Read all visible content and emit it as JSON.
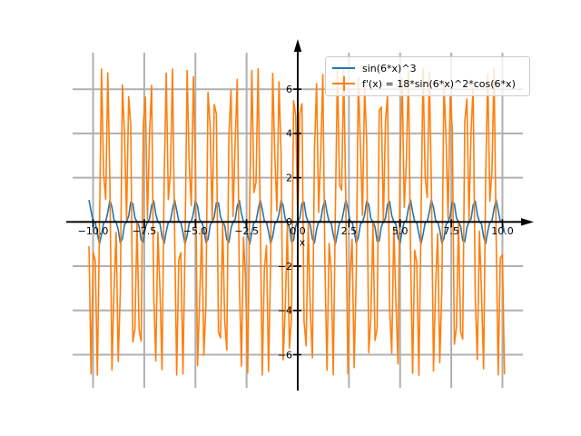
{
  "figure": {
    "background": "#ffffff",
    "xlabel": "x"
  },
  "legend": {
    "items": [
      {
        "label": "sin(6*x)^3",
        "handle": "line",
        "color": "#1f77b4"
      },
      {
        "label": "f'(x) = 18*sin(6*x)^2*cos(6*x)",
        "handle": "errorbar",
        "color": "#ff7f0e"
      }
    ]
  },
  "chart_data": {
    "type": "line",
    "title": "",
    "xlabel": "x",
    "ylabel": "",
    "grid": true,
    "grid_color": "#b0b0b0",
    "axis_color": "#000000",
    "legend_position": "upper center-right",
    "xlim": [
      -11,
      11
    ],
    "ylim": [
      -7.5,
      7.65
    ],
    "xticks": {
      "values": [
        -10,
        -7.5,
        -5,
        -2.5,
        0,
        2.5,
        5,
        7.5,
        10
      ],
      "labels": [
        "−10.0",
        "−7.5",
        "−5.0",
        "−2.5",
        "0.0",
        "2.5",
        "5.0",
        "7.5",
        "10.0"
      ]
    },
    "yticks": {
      "values": [
        6,
        4,
        2,
        0,
        -2,
        -4,
        -6
      ],
      "labels": [
        "6",
        "4",
        "2",
        "0",
        "−2",
        "−4",
        "−6"
      ]
    },
    "domain": {
      "x_start": -10.2,
      "x_end": 10.1,
      "n_points": 200
    },
    "series": [
      {
        "name": "sin(6*x)^3",
        "formula": "sin(6*x)^3",
        "fn_id": "sin3",
        "color": "#1f77b4",
        "amplitude": 1.0
      },
      {
        "name": "f'(x) = 18*sin(6*x)^2*cos(6*x)",
        "formula": "18*sin(6*x)^2*cos(6*x)",
        "fn_id": "dsin3",
        "color": "#ff7f0e",
        "amplitude": 6.93
      }
    ]
  }
}
